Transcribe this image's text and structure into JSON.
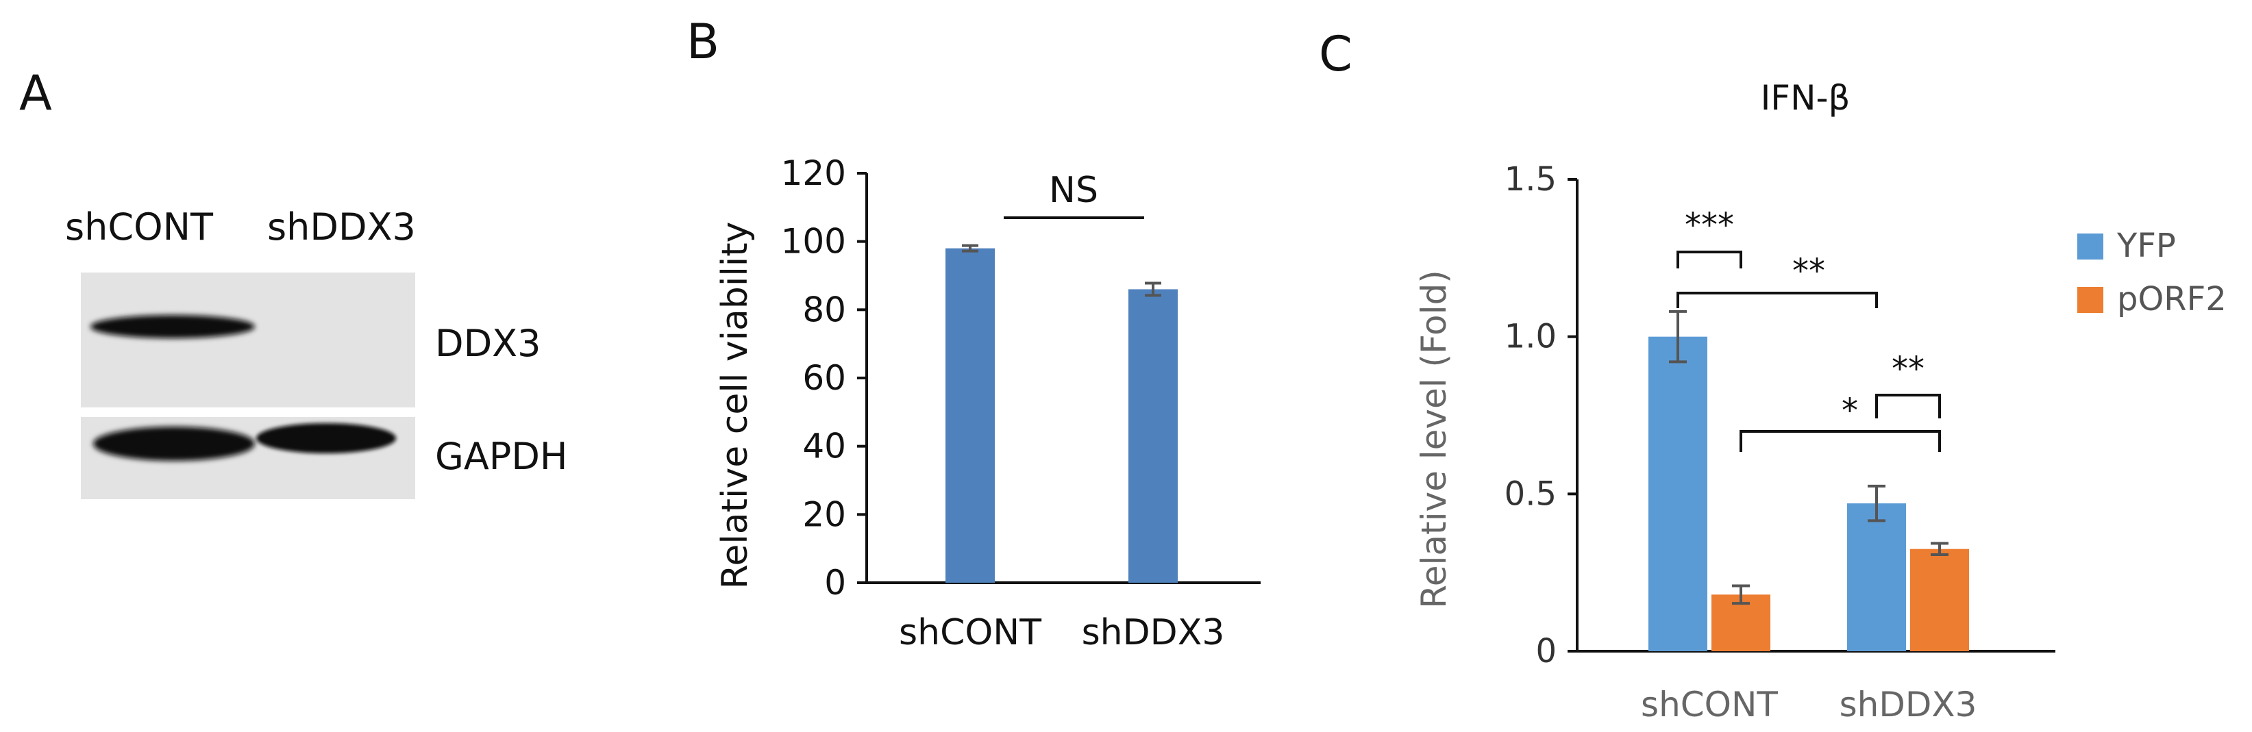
{
  "panels": {
    "a": "A",
    "b": "B",
    "c": "C"
  },
  "blot": {
    "lanes": [
      "shCONT",
      "shDDX3"
    ],
    "rows": [
      "DDX3",
      "GAPDH"
    ]
  },
  "annotations": {
    "b": [
      "NS"
    ],
    "c": [
      "***",
      "**",
      "*",
      "**"
    ]
  },
  "colors": {
    "bar_b": "#4f81bd",
    "yfp": "#5b9bd5",
    "porf2": "#ed7d31",
    "errorbar": "#555555"
  },
  "chart_data": [
    {
      "type": "bar",
      "title": "",
      "xlabel": "",
      "ylabel": "Relative cell viability",
      "categories": [
        "shCONT",
        "shDDX3"
      ],
      "values": [
        98,
        86
      ],
      "errors": [
        0.8,
        1.8
      ],
      "ylim": [
        0,
        120
      ],
      "yticks": [
        0,
        20,
        40,
        60,
        80,
        100,
        120
      ],
      "grid": false,
      "legend": "none",
      "significance": [
        {
          "between": [
            "shCONT",
            "shDDX3"
          ],
          "label": "NS"
        }
      ]
    },
    {
      "type": "bar",
      "title": "IFN-β",
      "xlabel": "",
      "ylabel": "Relative  level (Fold)",
      "categories": [
        "shCONT",
        "shDDX3"
      ],
      "series": [
        {
          "name": "YFP",
          "values": [
            1.0,
            0.47
          ],
          "errors": [
            0.08,
            0.055
          ]
        },
        {
          "name": "pORF2",
          "values": [
            0.18,
            0.325
          ],
          "errors": [
            0.028,
            0.018
          ]
        }
      ],
      "ylim": [
        0,
        1.5
      ],
      "yticks": [
        "0",
        "0.5",
        "1.0",
        "1.5"
      ],
      "grid": false,
      "legend": "right",
      "significance": [
        {
          "between": [
            "shCONT YFP",
            "shCONT pORF2"
          ],
          "label": "***"
        },
        {
          "between": [
            "shCONT YFP",
            "shDDX3 YFP"
          ],
          "label": "**"
        },
        {
          "between": [
            "shCONT pORF2",
            "shDDX3 pORF2"
          ],
          "label": "*"
        },
        {
          "between": [
            "shDDX3 YFP",
            "shDDX3 pORF2"
          ],
          "label": "**"
        }
      ]
    }
  ]
}
